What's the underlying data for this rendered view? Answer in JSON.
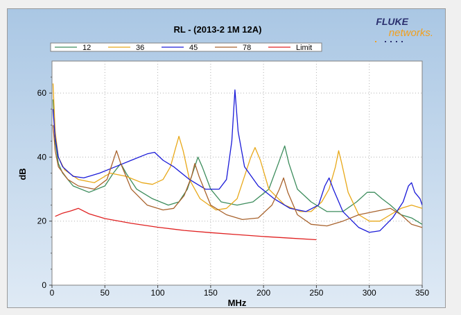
{
  "logo": {
    "brand_top": "FLUKE",
    "brand_bottom": "networks."
  },
  "chart_data": {
    "type": "line",
    "title": "RL - (2013-2  1M 12A)",
    "xlabel": "MHz",
    "ylabel": "dB",
    "xlim": [
      0,
      350
    ],
    "ylim": [
      0,
      70
    ],
    "xticks": [
      0,
      50,
      100,
      150,
      200,
      250,
      300,
      350
    ],
    "yticks": [
      0,
      20,
      40,
      60
    ],
    "grid": true,
    "legend_position": "top",
    "series": [
      {
        "name": "12",
        "color": "#3c8c5c",
        "points": [
          [
            1,
            58
          ],
          [
            3,
            45
          ],
          [
            6,
            38
          ],
          [
            10,
            35
          ],
          [
            20,
            31
          ],
          [
            35,
            29
          ],
          [
            50,
            31
          ],
          [
            58,
            35
          ],
          [
            65,
            38
          ],
          [
            70,
            35
          ],
          [
            80,
            30
          ],
          [
            95,
            27
          ],
          [
            110,
            25
          ],
          [
            120,
            26
          ],
          [
            128,
            30
          ],
          [
            134,
            36
          ],
          [
            138,
            40
          ],
          [
            142,
            37
          ],
          [
            150,
            30
          ],
          [
            160,
            26
          ],
          [
            175,
            25
          ],
          [
            190,
            26
          ],
          [
            205,
            30
          ],
          [
            214,
            38
          ],
          [
            220,
            43.5
          ],
          [
            224,
            38
          ],
          [
            232,
            30
          ],
          [
            245,
            26
          ],
          [
            260,
            23
          ],
          [
            275,
            23
          ],
          [
            288,
            26
          ],
          [
            298,
            29
          ],
          [
            305,
            29
          ],
          [
            312,
            27
          ],
          [
            320,
            25
          ],
          [
            330,
            22
          ],
          [
            340,
            21
          ],
          [
            350,
            19
          ]
        ]
      },
      {
        "name": "36",
        "color": "#e8a818",
        "points": [
          [
            1,
            63
          ],
          [
            3,
            48
          ],
          [
            6,
            40
          ],
          [
            12,
            36
          ],
          [
            25,
            33
          ],
          [
            40,
            32
          ],
          [
            55,
            35
          ],
          [
            70,
            34
          ],
          [
            85,
            32
          ],
          [
            95,
            31.5
          ],
          [
            105,
            33
          ],
          [
            112,
            37
          ],
          [
            117,
            43
          ],
          [
            120,
            46.5
          ],
          [
            124,
            42
          ],
          [
            130,
            33
          ],
          [
            140,
            27
          ],
          [
            155,
            23.5
          ],
          [
            165,
            24
          ],
          [
            175,
            27
          ],
          [
            182,
            34
          ],
          [
            188,
            40
          ],
          [
            192,
            43
          ],
          [
            197,
            39
          ],
          [
            205,
            30
          ],
          [
            220,
            25
          ],
          [
            235,
            23
          ],
          [
            245,
            23
          ],
          [
            255,
            26
          ],
          [
            262,
            30
          ],
          [
            268,
            37
          ],
          [
            271,
            42
          ],
          [
            274,
            38
          ],
          [
            280,
            29
          ],
          [
            290,
            22
          ],
          [
            300,
            20
          ],
          [
            310,
            20
          ],
          [
            320,
            22
          ],
          [
            330,
            24
          ],
          [
            340,
            25
          ],
          [
            350,
            24
          ]
        ]
      },
      {
        "name": "45",
        "color": "#1a1ad8",
        "points": [
          [
            1,
            55
          ],
          [
            3,
            46
          ],
          [
            6,
            40
          ],
          [
            10,
            37
          ],
          [
            20,
            34
          ],
          [
            30,
            33.5
          ],
          [
            45,
            35
          ],
          [
            60,
            37
          ],
          [
            75,
            39
          ],
          [
            90,
            41
          ],
          [
            97,
            41.5
          ],
          [
            105,
            39
          ],
          [
            115,
            37
          ],
          [
            130,
            33
          ],
          [
            145,
            30
          ],
          [
            158,
            30
          ],
          [
            165,
            33
          ],
          [
            170,
            45
          ],
          [
            173,
            61
          ],
          [
            176,
            48
          ],
          [
            182,
            37
          ],
          [
            195,
            31
          ],
          [
            210,
            27
          ],
          [
            225,
            24
          ],
          [
            240,
            23
          ],
          [
            252,
            25
          ],
          [
            258,
            31
          ],
          [
            262,
            33.5
          ],
          [
            266,
            30
          ],
          [
            275,
            23
          ],
          [
            290,
            18
          ],
          [
            300,
            16.5
          ],
          [
            310,
            17
          ],
          [
            322,
            21
          ],
          [
            332,
            26
          ],
          [
            337,
            31
          ],
          [
            340,
            32
          ],
          [
            343,
            29
          ],
          [
            348,
            27
          ],
          [
            350,
            25
          ]
        ]
      },
      {
        "name": "78",
        "color": "#a8622c",
        "points": [
          [
            1,
            50
          ],
          [
            3,
            42
          ],
          [
            6,
            37
          ],
          [
            15,
            33
          ],
          [
            25,
            31
          ],
          [
            40,
            30
          ],
          [
            52,
            33
          ],
          [
            58,
            39
          ],
          [
            61,
            42
          ],
          [
            65,
            38
          ],
          [
            75,
            30
          ],
          [
            90,
            25
          ],
          [
            105,
            23.5
          ],
          [
            115,
            24
          ],
          [
            125,
            28
          ],
          [
            132,
            34
          ],
          [
            135,
            38
          ],
          [
            139,
            34
          ],
          [
            150,
            25
          ],
          [
            165,
            22
          ],
          [
            180,
            20.5
          ],
          [
            195,
            21
          ],
          [
            208,
            25
          ],
          [
            215,
            30
          ],
          [
            219,
            33.5
          ],
          [
            223,
            29
          ],
          [
            232,
            22
          ],
          [
            245,
            19
          ],
          [
            260,
            18.5
          ],
          [
            275,
            20
          ],
          [
            290,
            22
          ],
          [
            305,
            23
          ],
          [
            320,
            24
          ],
          [
            330,
            22
          ],
          [
            340,
            19
          ],
          [
            350,
            18
          ]
        ]
      },
      {
        "name": "Limit",
        "color": "#e02020",
        "points": [
          [
            3,
            21.5
          ],
          [
            10,
            22.5
          ],
          [
            18,
            23.2
          ],
          [
            25,
            24
          ],
          [
            35,
            22.3
          ],
          [
            50,
            20.8
          ],
          [
            75,
            19.3
          ],
          [
            100,
            18.1
          ],
          [
            125,
            17.1
          ],
          [
            150,
            16.4
          ],
          [
            175,
            15.8
          ],
          [
            200,
            15.2
          ],
          [
            225,
            14.7
          ],
          [
            250,
            14.2
          ]
        ]
      }
    ]
  }
}
